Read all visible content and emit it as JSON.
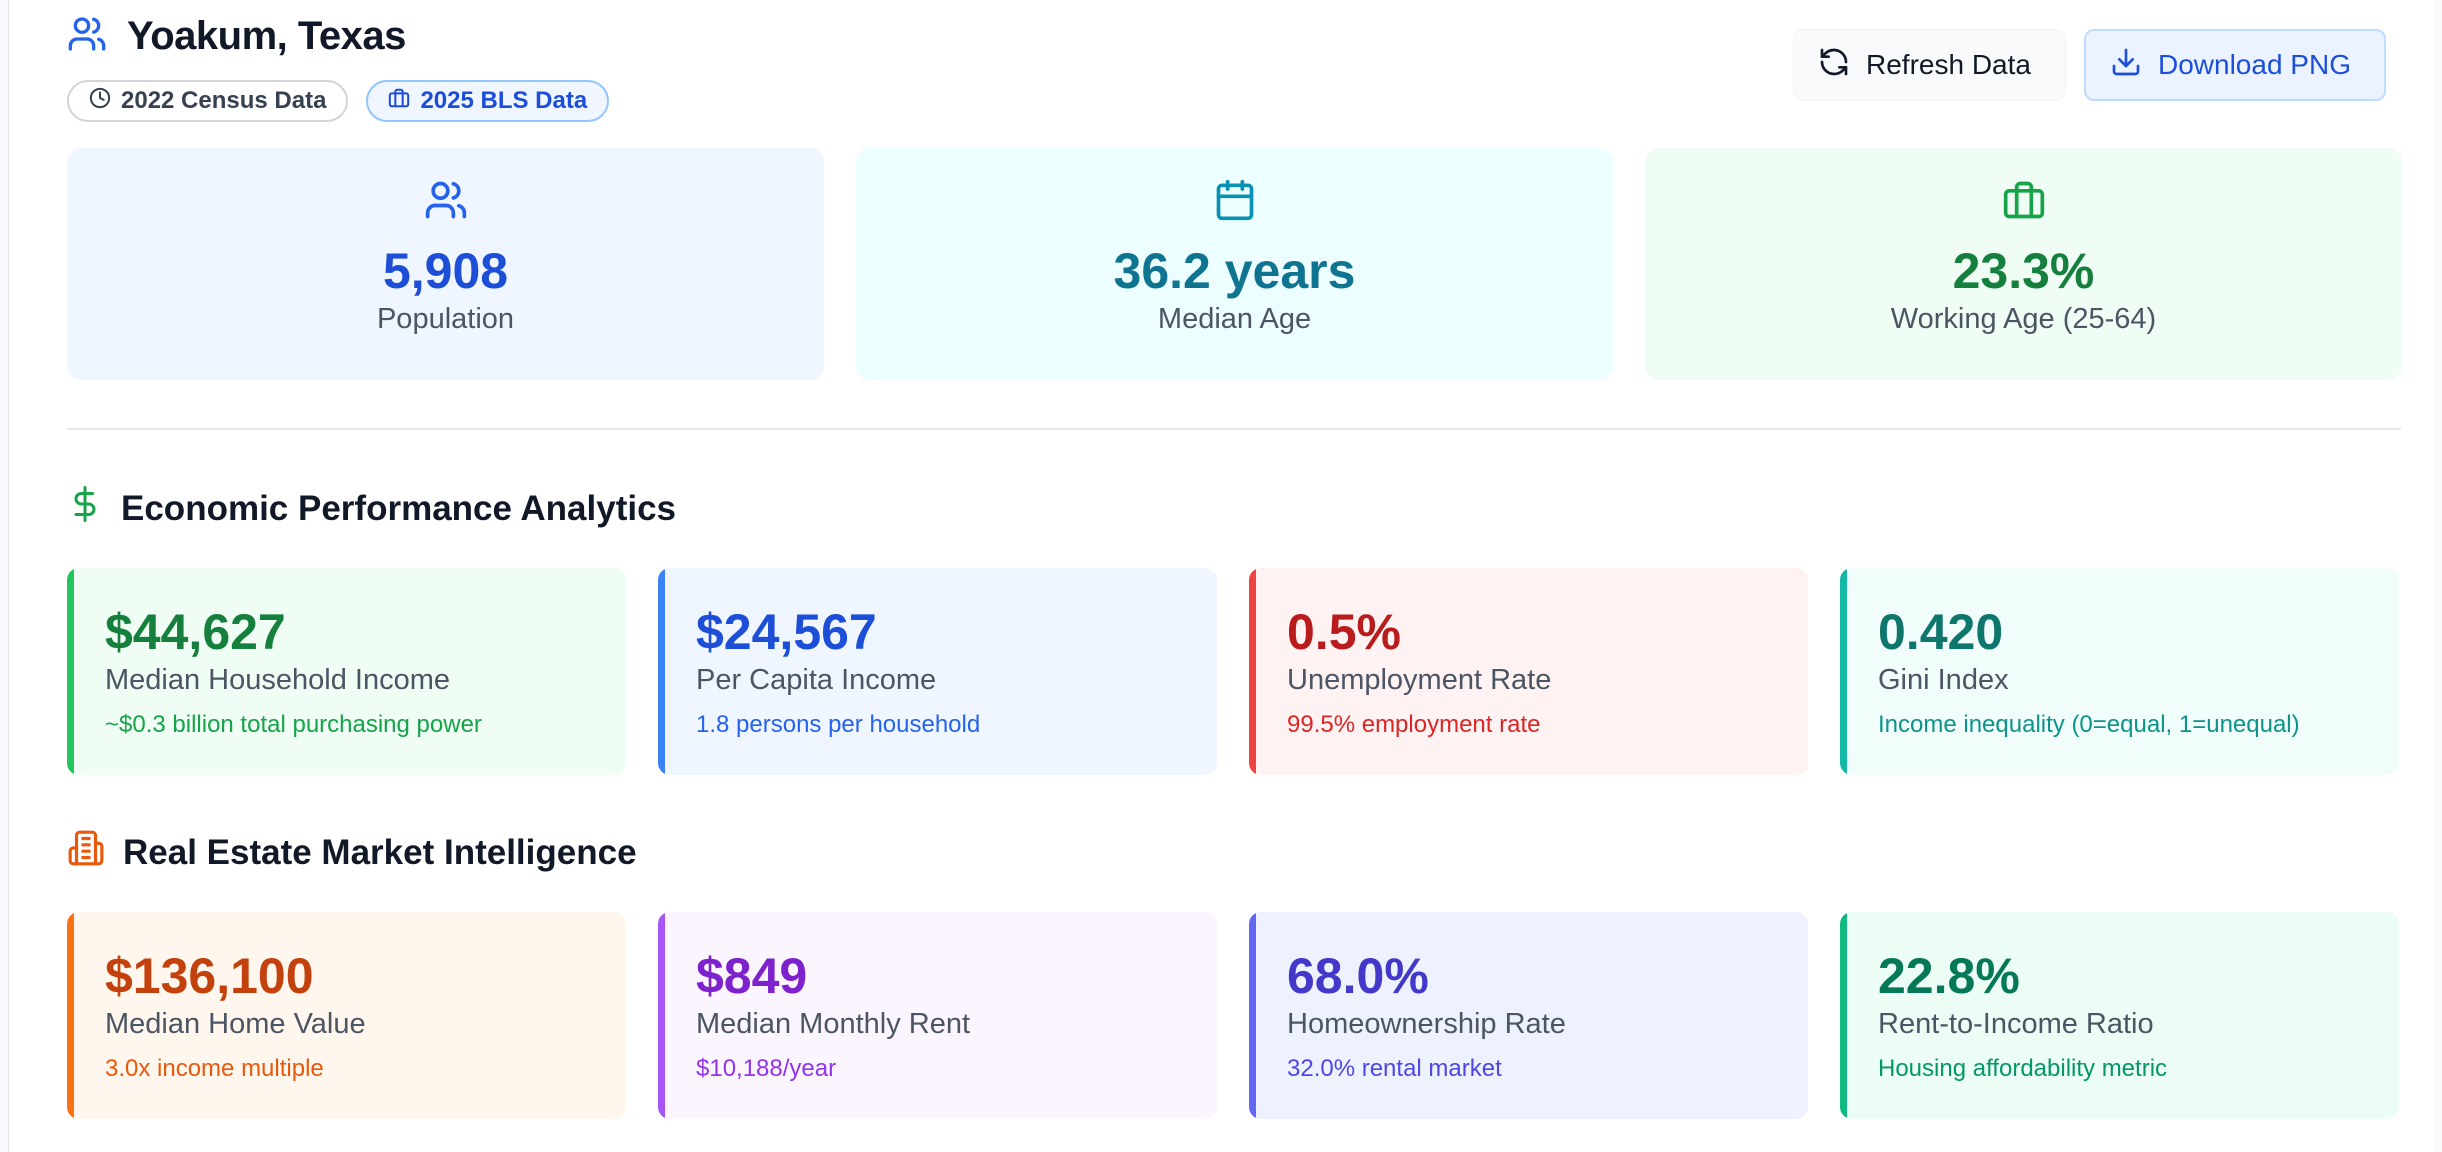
{
  "header": {
    "title": "Yoakum, Texas",
    "badges": {
      "census": "2022 Census Data",
      "bls": "2025 BLS Data"
    },
    "actions": {
      "refresh_label": "Refresh Data",
      "download_label": "Download PNG"
    }
  },
  "summary": [
    {
      "value": "5,908",
      "label": "Population",
      "icon": "users-icon",
      "color": "#1d4ed8"
    },
    {
      "value": "36.2 years",
      "label": "Median Age",
      "icon": "calendar-icon",
      "color": "#0e7490"
    },
    {
      "value": "23.3%",
      "label": "Working Age (25-64)",
      "icon": "briefcase-icon",
      "color": "#15803d"
    }
  ],
  "economic": {
    "title": "Economic Performance Analytics",
    "icon": "dollar-icon",
    "cards": [
      {
        "value": "$44,627",
        "label": "Median Household Income",
        "sub": "~$0.3 billion total purchasing power",
        "accent": "#22c55e",
        "accent_text": "#15803d",
        "sub_text": "#16a34a",
        "bg": "#f0fdf4"
      },
      {
        "value": "$24,567",
        "label": "Per Capita Income",
        "sub": "1.8 persons per household",
        "accent": "#3b82f6",
        "accent_text": "#1d4ed8",
        "sub_text": "#2563eb",
        "bg": "#eff6ff"
      },
      {
        "value": "0.5%",
        "label": "Unemployment Rate",
        "sub": "99.5% employment rate",
        "accent": "#ef4444",
        "accent_text": "#b91c1c",
        "sub_text": "#dc2626",
        "bg": "#fef2f2"
      },
      {
        "value": "0.420",
        "label": "Gini Index",
        "sub": "Income inequality (0=equal, 1=unequal)",
        "accent": "#14b8a6",
        "accent_text": "#0f766e",
        "sub_text": "#0d9488",
        "bg": "#f0fdfa"
      }
    ]
  },
  "real_estate": {
    "title": "Real Estate Market Intelligence",
    "icon": "building-icon",
    "cards": [
      {
        "value": "$136,100",
        "label": "Median Home Value",
        "sub": "3.0x income multiple",
        "accent": "#f97316",
        "accent_text": "#c2410c",
        "sub_text": "#ea580c",
        "bg": "#fff7ed"
      },
      {
        "value": "$849",
        "label": "Median Monthly Rent",
        "sub": "$10,188/year",
        "accent": "#a855f7",
        "accent_text": "#7e22ce",
        "sub_text": "#9333ea",
        "bg": "#faf5ff"
      },
      {
        "value": "68.0%",
        "label": "Homeownership Rate",
        "sub": "32.0% rental market",
        "accent": "#6366f1",
        "accent_text": "#4338ca",
        "sub_text": "#4f46e5",
        "bg": "#eef2ff"
      },
      {
        "value": "22.8%",
        "label": "Rent-to-Income Ratio",
        "sub": "Housing affordability metric",
        "accent": "#10b981",
        "accent_text": "#047857",
        "sub_text": "#059669",
        "bg": "#ecfdf5"
      }
    ]
  }
}
